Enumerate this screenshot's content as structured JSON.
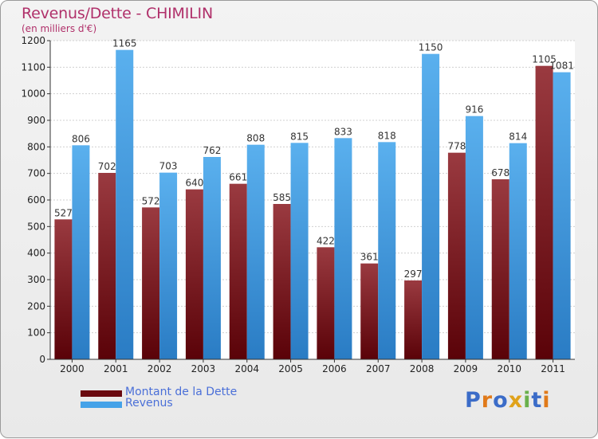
{
  "header": {
    "title": "Revenus/Dette - CHIMILIN",
    "subtitle": "(en milliers d'€)"
  },
  "chart_data": {
    "type": "bar",
    "title": "Revenus/Dette - CHIMILIN",
    "ylabel": "(en milliers d'€)",
    "xlabel": "",
    "categories": [
      "2000",
      "2001",
      "2002",
      "2003",
      "2004",
      "2005",
      "2006",
      "2007",
      "2008",
      "2009",
      "2010",
      "2011"
    ],
    "series": [
      {
        "name": "Montant de la Dette",
        "color": "#7a1018",
        "values": [
          527,
          702,
          572,
          640,
          661,
          585,
          422,
          361,
          297,
          778,
          678,
          1105
        ]
      },
      {
        "name": "Revenus",
        "color": "#3d98e0",
        "values": [
          806,
          1165,
          703,
          762,
          808,
          815,
          833,
          818,
          1150,
          916,
          814,
          1081
        ]
      }
    ],
    "ylim": [
      0,
      1200
    ],
    "yticks": [
      0,
      100,
      200,
      300,
      400,
      500,
      600,
      700,
      800,
      900,
      1000,
      1100,
      1200
    ],
    "grid": true,
    "legend": "bottom-left"
  },
  "legend": {
    "items": [
      {
        "label": "Montant de la Dette",
        "color": "#6a0a10"
      },
      {
        "label": "Revenus",
        "color": "#45a2e8"
      }
    ]
  },
  "logo": {
    "letters": [
      "P",
      "r",
      "o",
      "x",
      "i",
      "t",
      "i"
    ],
    "colors": [
      "#3b6cc8",
      "#e07a1a",
      "#3b6cc8",
      "#e0a21a",
      "#6ab04c",
      "#3b6cc8",
      "#e07a1a"
    ]
  }
}
